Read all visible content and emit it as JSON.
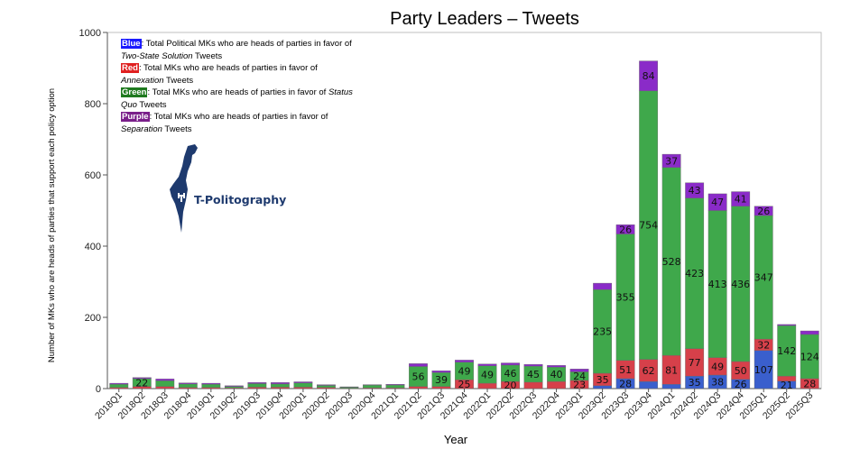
{
  "chart_data": {
    "type": "bar",
    "stacked": true,
    "title": "Party Leaders – Tweets",
    "xlabel": "Year",
    "ylabel": "Number of MKs who are heads of parties that support each policy option",
    "ylim": [
      0,
      1000
    ],
    "yticks": [
      0,
      200,
      400,
      600,
      800,
      1000
    ],
    "grid": false,
    "legend_position": "top-left",
    "categories": [
      "2018Q1",
      "2018Q2",
      "2018Q3",
      "2018Q4",
      "2019Q1",
      "2019Q2",
      "2019Q3",
      "2019Q4",
      "2020Q1",
      "2020Q2",
      "2020Q3",
      "2020Q4",
      "2021Q1",
      "2021Q2",
      "2021Q3",
      "2021Q4",
      "2022Q1",
      "2022Q2",
      "2022Q3",
      "2022Q4",
      "2023Q1",
      "2023Q2",
      "2023Q3",
      "2023Q4",
      "2024Q1",
      "2024Q2",
      "2024Q3",
      "2024Q4",
      "2025Q1",
      "2025Q2",
      "2025Q3"
    ],
    "series": [
      {
        "name": "Blue",
        "color": "#3a5fcd",
        "values": [
          0,
          0,
          0,
          0,
          0,
          0,
          0,
          0,
          0,
          0,
          0,
          0,
          0,
          0,
          0,
          0,
          0,
          0,
          0,
          0,
          0,
          8,
          28,
          20,
          12,
          35,
          38,
          26,
          107,
          21,
          0
        ],
        "labels": [
          null,
          null,
          null,
          null,
          null,
          null,
          null,
          null,
          null,
          null,
          null,
          null,
          null,
          null,
          null,
          null,
          null,
          null,
          null,
          null,
          null,
          null,
          28,
          null,
          null,
          35,
          38,
          26,
          107,
          21,
          null
        ]
      },
      {
        "name": "Red",
        "color": "#d6404a",
        "values": [
          3,
          6,
          6,
          3,
          3,
          2,
          4,
          4,
          4,
          3,
          1,
          2,
          2,
          6,
          6,
          25,
          15,
          20,
          18,
          20,
          23,
          35,
          51,
          62,
          81,
          77,
          49,
          50,
          32,
          14,
          28
        ],
        "labels": [
          null,
          null,
          null,
          null,
          null,
          null,
          null,
          null,
          null,
          null,
          null,
          null,
          null,
          null,
          null,
          25,
          null,
          20,
          null,
          null,
          23,
          35,
          51,
          62,
          81,
          77,
          49,
          50,
          32,
          null,
          28
        ]
      },
      {
        "name": "Green",
        "color": "#3fa84b",
        "values": [
          9,
          22,
          16,
          10,
          9,
          4,
          10,
          9,
          12,
          6,
          3,
          8,
          8,
          56,
          39,
          49,
          49,
          46,
          45,
          40,
          24,
          235,
          355,
          754,
          528,
          423,
          413,
          436,
          347,
          142,
          124
        ],
        "labels": [
          null,
          22,
          null,
          null,
          null,
          null,
          null,
          null,
          null,
          null,
          null,
          null,
          null,
          56,
          39,
          49,
          49,
          46,
          45,
          40,
          24,
          235,
          355,
          754,
          528,
          423,
          413,
          436,
          347,
          142,
          124
        ]
      },
      {
        "name": "Purple",
        "color": "#8a2bc8",
        "values": [
          3,
          3,
          5,
          3,
          3,
          2,
          3,
          4,
          3,
          2,
          1,
          1,
          2,
          8,
          5,
          6,
          5,
          6,
          5,
          5,
          8,
          18,
          26,
          84,
          37,
          43,
          47,
          41,
          26,
          3,
          10
        ],
        "labels": [
          null,
          null,
          null,
          null,
          null,
          null,
          null,
          null,
          null,
          null,
          null,
          null,
          null,
          null,
          null,
          null,
          null,
          null,
          null,
          null,
          null,
          null,
          26,
          84,
          37,
          43,
          47,
          41,
          26,
          null,
          null
        ]
      }
    ]
  },
  "legend": {
    "items": [
      {
        "tag": "Blue",
        "color": "#1a1aff",
        "pre": ": Total Political MKs who are heads of parties in favor of ",
        "em": "Two-State Solution",
        "post": " Tweets"
      },
      {
        "tag": "Red",
        "color": "#e02020",
        "pre": ": Total MKs who are heads of parties in favor of ",
        "em": "Annexation",
        "post": " Tweets"
      },
      {
        "tag": "Green",
        "color": "#1f7a1f",
        "pre": ": Total MKs who are heads of parties in favor of ",
        "em": "Status Quo",
        "post": " Tweets"
      },
      {
        "tag": "Purple",
        "color": "#7a1f8a",
        "pre": ": Total MKs who are heads of parties in favor of ",
        "em": "Separation",
        "post": " Tweets"
      }
    ]
  },
  "logo": {
    "text": "T-Politography",
    "color": "#1e3a6e"
  }
}
